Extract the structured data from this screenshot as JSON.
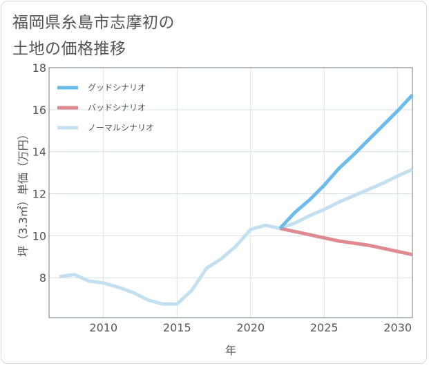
{
  "chart_data": {
    "type": "line",
    "title": "福岡県糸島市志摩初の土地の価格推移",
    "title_lines": [
      "福岡県糸島市志摩初の",
      "土地の価格推移"
    ],
    "xlabel": "年",
    "ylabel": "坪（3.3㎡）単価（万円）",
    "xlim": [
      2006.3,
      2031
    ],
    "ylim": [
      6.1,
      18
    ],
    "xticks": [
      2010,
      2015,
      2020,
      2025,
      2030
    ],
    "yticks": [
      8,
      10,
      12,
      14,
      16,
      18
    ],
    "grid": true,
    "legend_position": "top-left",
    "series": [
      {
        "name": "グッドシナリオ",
        "color": "#6dbbec",
        "x": [
          2022,
          2023,
          2024,
          2025,
          2026,
          2027,
          2028,
          2029,
          2030,
          2031
        ],
        "values": [
          10.35,
          11.1,
          11.7,
          12.4,
          13.2,
          13.85,
          14.55,
          15.25,
          15.95,
          16.7
        ]
      },
      {
        "name": "バッドシナリオ",
        "color": "#de8a90",
        "x": [
          2022,
          2023,
          2024,
          2025,
          2026,
          2027,
          2028,
          2029,
          2030,
          2031
        ],
        "values": [
          10.35,
          10.2,
          10.05,
          9.9,
          9.75,
          9.65,
          9.55,
          9.4,
          9.25,
          9.1
        ]
      },
      {
        "name": "ノーマルシナリオ",
        "color": "#c4e0f0",
        "x": [
          2007,
          2008,
          2009,
          2010,
          2011,
          2012,
          2013,
          2014,
          2015,
          2016,
          2017,
          2018,
          2019,
          2020,
          2021,
          2022,
          2023,
          2024,
          2025,
          2026,
          2027,
          2028,
          2029,
          2030,
          2031
        ],
        "values": [
          8.05,
          8.15,
          7.85,
          7.75,
          7.55,
          7.3,
          6.95,
          6.75,
          6.75,
          7.4,
          8.45,
          8.9,
          9.5,
          10.3,
          10.5,
          10.35,
          10.6,
          10.95,
          11.25,
          11.6,
          11.9,
          12.2,
          12.5,
          12.85,
          13.15
        ]
      }
    ]
  }
}
